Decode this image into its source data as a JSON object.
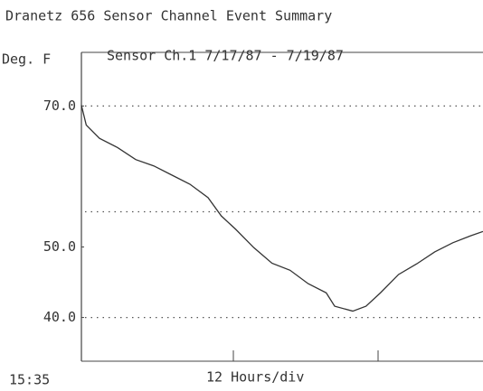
{
  "chart_data": {
    "type": "line",
    "title": "Dranetz 656 Sensor Channel Event Summary",
    "ylabel": "Deg. F",
    "subtitle": "Sensor Ch.1  7/17/87 - 7/19/87",
    "x_start_label": "15:35",
    "xlabel": "12 Hours/div",
    "x": [
      0,
      0.4,
      1.5,
      3,
      4.5,
      6,
      7.5,
      9,
      10.5,
      11.6,
      12.8,
      14.3,
      15.8,
      17.3,
      18.8,
      20.3,
      21,
      22.5,
      23.6,
      24.8,
      26.3,
      27.8,
      29.3,
      30.8,
      32.3,
      33.3
    ],
    "series": [
      {
        "name": "Sensor Ch.1",
        "color": "#333333",
        "values": [
          70.1,
          67.3,
          65.4,
          64.1,
          62.4,
          61.5,
          60.2,
          58.9,
          57.0,
          54.4,
          52.5,
          49.9,
          47.7,
          46.7,
          44.8,
          43.5,
          41.6,
          40.9,
          41.6,
          43.5,
          46.1,
          47.6,
          49.3,
          50.6,
          51.6,
          52.2
        ]
      }
    ],
    "xlim": [
      0,
      33.3
    ],
    "x_divisions": [
      12.6,
      24.6
    ],
    "ylim": [
      33.8,
      77.6
    ],
    "yticks": [
      {
        "value": 70,
        "label": "70.0"
      },
      {
        "value": 50,
        "label": "50.0"
      },
      {
        "value": 40,
        "label": "40.0"
      }
    ],
    "gridlines": [
      70,
      55,
      40
    ],
    "grid": true
  }
}
